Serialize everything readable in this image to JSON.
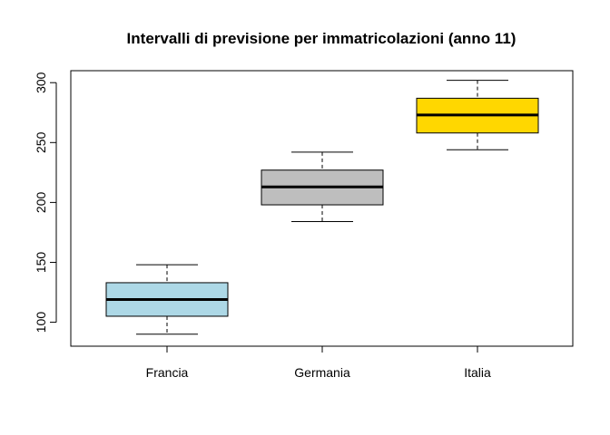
{
  "chart_data": {
    "type": "boxplot",
    "title": "Intervalli di previsione per immatricolazioni (anno 11)",
    "xlabel": "",
    "ylabel": "",
    "ylim": [
      80,
      310
    ],
    "yticks": [
      100,
      150,
      200,
      250,
      300
    ],
    "grid": false,
    "categories": [
      "Francia",
      "Germania",
      "Italia"
    ],
    "boxes": [
      {
        "category": "Francia",
        "whisker_low": 90,
        "q1": 105,
        "median": 119,
        "q3": 133,
        "whisker_high": 148,
        "color": "#ADD8E6"
      },
      {
        "category": "Germania",
        "whisker_low": 184,
        "q1": 198,
        "median": 213,
        "q3": 227,
        "whisker_high": 242,
        "color": "#BEBEBE"
      },
      {
        "category": "Italia",
        "whisker_low": 244,
        "q1": 258,
        "median": 273,
        "q3": 287,
        "whisker_high": 302,
        "color": "#FFD700"
      }
    ]
  }
}
